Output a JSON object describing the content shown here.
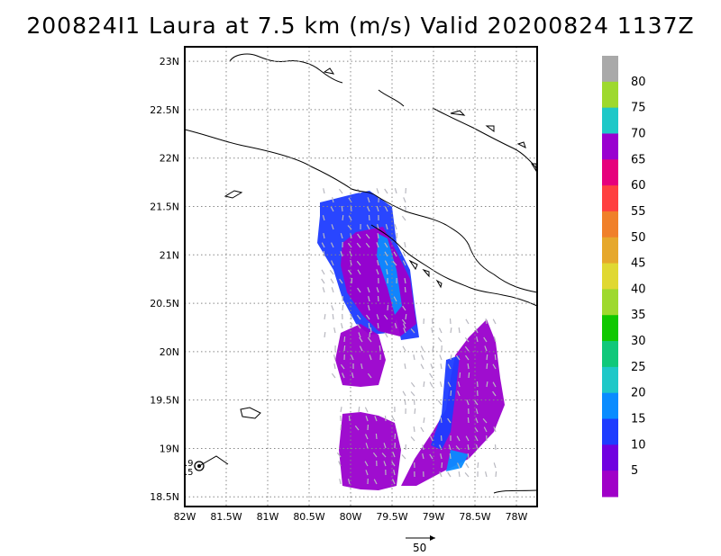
{
  "title": "200824I1 Laura at 7.5 km (m/s) Valid 20200824 1137Z",
  "map": {
    "lat_ticks": [
      "23N",
      "22.5N",
      "22N",
      "21.5N",
      "21N",
      "20.5N",
      "20N",
      "19.5N",
      "19N",
      "18.5N"
    ],
    "lon_ticks": [
      "82W",
      "81.5W",
      "81W",
      "80.5W",
      "80W",
      "79.5W",
      "79W",
      "78.5W",
      "78W"
    ],
    "lon_range": [
      -82,
      -77.75
    ],
    "lat_range": [
      18.4,
      23.15
    ],
    "grid": "dotted",
    "storm_marker_labels": [
      ".9",
      ".5"
    ]
  },
  "colorbar": {
    "labels": [
      "80",
      "75",
      "70",
      "65",
      "60",
      "55",
      "50",
      "45",
      "40",
      "35",
      "30",
      "25",
      "20",
      "15",
      "10",
      "5"
    ],
    "colors": [
      "#a9a9a9",
      "#9ed92e",
      "#1ec8c8",
      "#9900d0",
      "#e6007c",
      "#ff4040",
      "#f0802a",
      "#e6a82c",
      "#e0d832",
      "#9ed92e",
      "#10c800",
      "#10c87a",
      "#1ec8c8",
      "#0a8cff",
      "#1e3cff",
      "#7000e0",
      "#a000c8"
    ]
  },
  "vector_reference": {
    "label": "50"
  }
}
